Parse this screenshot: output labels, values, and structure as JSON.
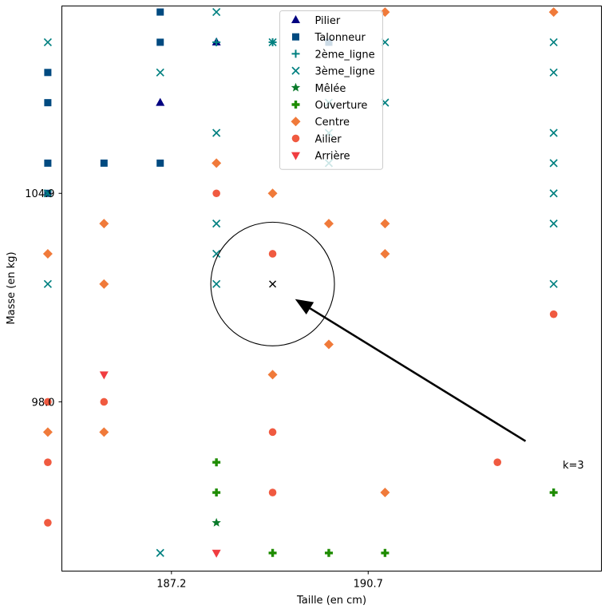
{
  "chart_data": {
    "type": "scatter",
    "title": "",
    "xlabel": "Taille (en cm)",
    "ylabel": "Masse (en kg)",
    "xlim": [
      185.25,
      194.85
    ],
    "ylim": [
      92.4,
      111.1
    ],
    "xticks": [
      187.2,
      190.7
    ],
    "yticks": [
      98.0,
      104.9
    ],
    "legend_position": "top-center",
    "series": [
      {
        "name": "Pilier",
        "label": "Pilier",
        "color": "#000080",
        "marker": "triangle-up",
        "points": [
          [
            188.0,
            109.9
          ],
          [
            187.0,
            107.9
          ]
        ]
      },
      {
        "name": "Talonneur",
        "label": "Talonneur",
        "color": "#004a80",
        "marker": "square",
        "points": [
          [
            187.0,
            110.9
          ],
          [
            187.0,
            109.9
          ],
          [
            190.0,
            109.9
          ],
          [
            185.0,
            108.9
          ],
          [
            185.0,
            107.9
          ],
          [
            185.0,
            105.9
          ],
          [
            186.0,
            105.9
          ],
          [
            187.0,
            105.9
          ],
          [
            185.0,
            104.9
          ]
        ]
      },
      {
        "name": "2ème_ligne",
        "label": "2ème_ligne",
        "color": "#008080",
        "marker": "plus",
        "points": [
          [
            188.0,
            109.9
          ],
          [
            189.0,
            109.9
          ]
        ]
      },
      {
        "name": "3ème_ligne",
        "label": "3ème_ligne",
        "color": "#008080",
        "marker": "x",
        "points": [
          [
            188.0,
            110.9
          ],
          [
            185.0,
            109.9
          ],
          [
            189.0,
            109.9
          ],
          [
            191.0,
            109.9
          ],
          [
            194.0,
            109.9
          ],
          [
            187.0,
            108.9
          ],
          [
            194.0,
            108.9
          ],
          [
            190.0,
            107.9
          ],
          [
            191.0,
            107.9
          ],
          [
            188.0,
            106.9
          ],
          [
            190.0,
            106.9
          ],
          [
            194.0,
            106.9
          ],
          [
            190.0,
            105.9
          ],
          [
            194.0,
            105.9
          ],
          [
            185.0,
            104.9
          ],
          [
            194.0,
            104.9
          ],
          [
            188.0,
            103.9
          ],
          [
            194.0,
            103.9
          ],
          [
            188.0,
            102.9
          ],
          [
            185.0,
            101.9
          ],
          [
            188.0,
            101.9
          ],
          [
            194.0,
            101.9
          ],
          [
            187.0,
            93.0
          ]
        ]
      },
      {
        "name": "Mêlée",
        "label": "Mêlée",
        "color": "#0a7a2a",
        "marker": "star",
        "points": [
          [
            188.0,
            94.0
          ]
        ]
      },
      {
        "name": "Ouverture",
        "label": "Ouverture",
        "color": "#1e8c00",
        "marker": "thick-plus",
        "points": [
          [
            188.0,
            96.0
          ],
          [
            188.0,
            95.0
          ],
          [
            194.0,
            95.0
          ],
          [
            189.0,
            93.0
          ],
          [
            190.0,
            93.0
          ],
          [
            191.0,
            93.0
          ]
        ]
      },
      {
        "name": "Centre",
        "label": "Centre",
        "color": "#f07a3a",
        "marker": "diamond",
        "points": [
          [
            191.0,
            110.9
          ],
          [
            194.0,
            110.9
          ],
          [
            188.0,
            105.9
          ],
          [
            189.0,
            104.9
          ],
          [
            186.0,
            103.9
          ],
          [
            190.0,
            103.9
          ],
          [
            191.0,
            103.9
          ],
          [
            185.0,
            102.9
          ],
          [
            191.0,
            102.9
          ],
          [
            186.0,
            101.9
          ],
          [
            190.0,
            99.9
          ],
          [
            189.0,
            98.9
          ],
          [
            185.0,
            97.0
          ],
          [
            186.0,
            97.0
          ],
          [
            191.0,
            95.0
          ]
        ]
      },
      {
        "name": "Ailier",
        "label": "Ailier",
        "color": "#f05a40",
        "marker": "circle",
        "points": [
          [
            188.0,
            104.9
          ],
          [
            189.0,
            102.9
          ],
          [
            194.0,
            100.9
          ],
          [
            185.0,
            98.0
          ],
          [
            186.0,
            98.0
          ],
          [
            189.0,
            97.0
          ],
          [
            185.0,
            96.0
          ],
          [
            193.0,
            96.0
          ],
          [
            189.0,
            95.0
          ],
          [
            185.0,
            94.0
          ]
        ]
      },
      {
        "name": "Arrière",
        "label": "Arrière",
        "color": "#f03c40",
        "marker": "triangle-down",
        "points": [
          [
            186.0,
            98.9
          ],
          [
            188.0,
            93.0
          ]
        ]
      }
    ],
    "query_point": {
      "x": 189.0,
      "y": 101.9,
      "marker": "x",
      "color": "#000000"
    },
    "neighbourhood_circle": {
      "cx": 189.0,
      "cy": 101.9,
      "radius_x_units": 1.1
    },
    "annotation": {
      "text": "k=3",
      "arrow_from": [
        193.5,
        96.7
      ],
      "arrow_to": [
        189.4,
        101.4
      ]
    }
  }
}
